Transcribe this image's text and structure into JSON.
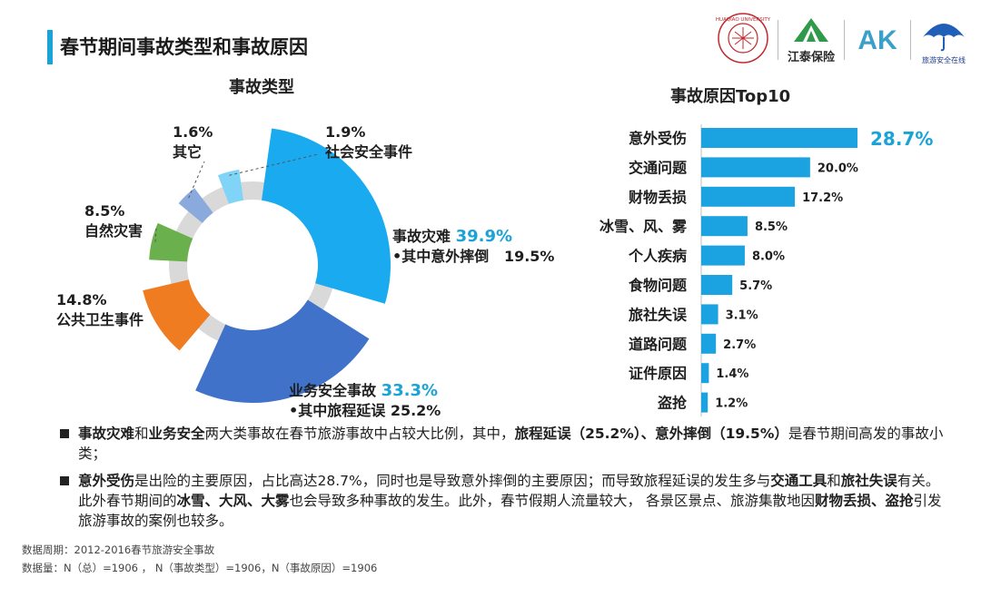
{
  "page_title": "春节期间事故类型和事故原因",
  "logos": {
    "university_ring": "HUAQIAO UNIVERSITY",
    "jiangtai": "江泰保险",
    "ak": "AK",
    "safety_small": "旅游安全在线"
  },
  "chart_data": [
    {
      "type": "pie",
      "title": "事故类型",
      "slices": [
        {
          "label": "事故灾难",
          "value": 39.9,
          "value_text": "39.9%",
          "sub_label": "•其中意外摔倒",
          "sub_value": "19.5%",
          "color": "#1aaaf0"
        },
        {
          "label": "业务安全事故",
          "value": 33.3,
          "value_text": "33.3%",
          "sub_label": "•其中旅程延误",
          "sub_value": "25.2%",
          "color": "#3f72c8"
        },
        {
          "label": "公共卫生事件",
          "value": 14.8,
          "value_text": "14.8%",
          "color": "#f07c22"
        },
        {
          "label": "自然灾害",
          "value": 8.5,
          "value_text": "8.5%",
          "color": "#6ab04c"
        },
        {
          "label": "其它",
          "value": 1.6,
          "value_text": "1.6%",
          "color": "#8aa9dc"
        },
        {
          "label": "社会安全事件",
          "value": 1.9,
          "value_text": "1.9%",
          "color": "#7fd4f7"
        }
      ]
    },
    {
      "type": "bar",
      "orientation": "horizontal",
      "title": "事故原因Top10",
      "categories": [
        "意外受伤",
        "交通问题",
        "财物丢损",
        "冰雪、风、雾",
        "个人疾病",
        "食物问题",
        "旅社失误",
        "道路问题",
        "证件原因",
        "盗抢"
      ],
      "values": [
        28.7,
        20.0,
        17.2,
        8.5,
        8.0,
        5.7,
        3.1,
        2.7,
        1.4,
        1.2
      ],
      "value_labels": [
        "28.7%",
        "20.0%",
        "17.2%",
        "8.5%",
        "8.0%",
        "5.7%",
        "3.1%",
        "2.7%",
        "1.4%",
        "1.2%"
      ],
      "highlight_index": 0,
      "colors": {
        "bar": "#1aa3e0",
        "highlight_label": "#1aa3d6"
      }
    }
  ],
  "notes": {
    "n1": {
      "t1": "事故灾难",
      "t2": "和",
      "t3": "业务安全",
      "t4": "两大类事故在春节旅游事故中占较大比例，其中，",
      "t5": "旅程延误（25.2%）、意外摔倒（19.5%）",
      "t6": "是春节期间高发的事故小类；"
    },
    "n2": {
      "t1": "意外受伤",
      "t2": "是出险的主要原因，占比高达28.7%，同时也是导致意外摔倒的主要原因；而导致旅程延误的发生多与",
      "t3": "交通工具",
      "t4": "和",
      "t5": "旅社失误",
      "t6": "有关。此外春节期间的",
      "t7": "冰雪、大风、大雾",
      "t8": "也会导致多种事故的发生。此外，春节假期人流量较大， 各景区景点、旅游集散地因",
      "t9": "财物丢损、盗抢",
      "t10": "引发旅游事故的案例也较多。"
    }
  },
  "footer": {
    "period": "数据周期：2012-2016春节旅游安全事故",
    "sample": "数据量：N（总）=1906 ， N（事故类型）=1906，N（事故原因）=1906"
  }
}
